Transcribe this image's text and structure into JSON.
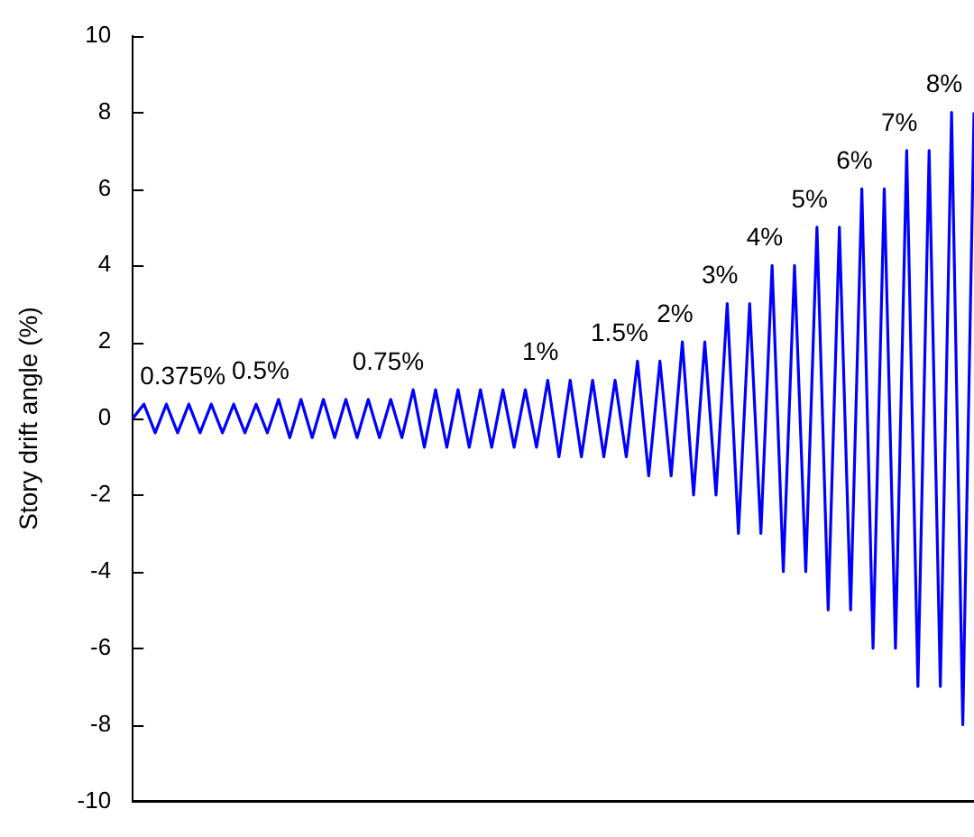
{
  "chart_data": {
    "type": "line",
    "ylabel": "Story drift angle (%)",
    "categories": [
      null,
      null,
      null,
      null,
      null,
      null,
      null,
      null,
      null,
      null,
      null,
      null,
      null,
      null,
      null,
      null,
      null,
      null,
      null,
      null,
      null,
      null,
      null,
      null,
      null,
      null,
      null,
      null,
      null,
      null,
      null,
      null,
      null,
      null,
      null,
      null,
      null,
      null,
      null,
      null,
      null,
      null,
      null,
      null,
      null,
      null,
      null,
      null,
      null,
      null,
      null,
      null,
      null,
      null,
      null,
      null,
      null,
      null,
      null,
      null,
      null,
      null,
      null,
      null,
      null,
      null,
      null,
      null,
      null,
      null,
      null,
      null,
      null,
      null,
      null,
      null
    ],
    "series": [
      {
        "color": "#0000ff",
        "values": [
          0,
          0.375,
          -0.375,
          0.375,
          -0.375,
          0.375,
          -0.375,
          0.375,
          -0.375,
          0.375,
          -0.375,
          0.375,
          -0.375,
          0.5,
          -0.5,
          0.5,
          -0.5,
          0.5,
          -0.5,
          0.5,
          -0.5,
          0.5,
          -0.5,
          0.5,
          -0.5,
          0.75,
          -0.75,
          0.75,
          -0.75,
          0.75,
          -0.75,
          0.75,
          -0.75,
          0.75,
          -0.75,
          0.75,
          -0.75,
          1,
          -1,
          1,
          -1,
          1,
          -1,
          1,
          -1,
          1.5,
          -1.5,
          1.5,
          -1.5,
          2,
          -2,
          2,
          -2,
          3,
          -3,
          3,
          -3,
          4,
          -4,
          4,
          -4,
          5,
          -5,
          5,
          -5,
          6,
          -6,
          6,
          -6,
          7,
          -7,
          7,
          -7,
          8,
          -8,
          8
        ]
      }
    ],
    "ylim": [
      -10,
      10
    ],
    "yticks": [
      -10,
      -8,
      -6,
      -4,
      -2,
      0,
      2,
      4,
      6,
      8,
      10
    ],
    "tick_labels": "y",
    "legend": false,
    "marker": "none",
    "line_style": "solid",
    "annotations": [
      "0.375%",
      "0.5%",
      "0.75%",
      "1%",
      "1.5%",
      "2%",
      "3%",
      "4%",
      "5%",
      "6%",
      "7%",
      "8%"
    ]
  }
}
